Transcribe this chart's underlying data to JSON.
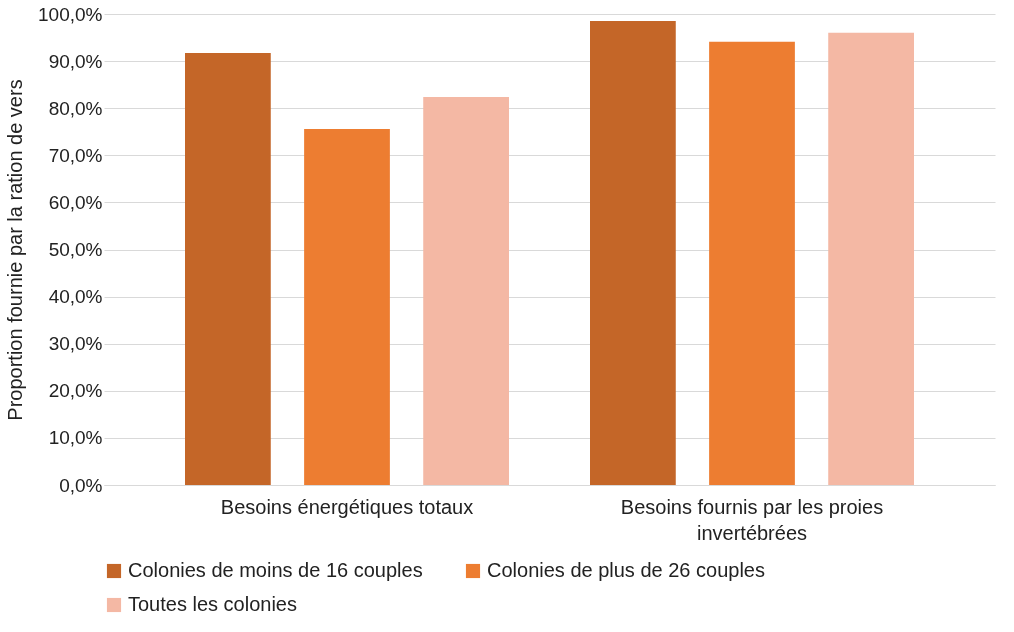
{
  "chart_data": {
    "type": "bar",
    "ylabel": "Proportion fournie par la ration de vers",
    "categories": [
      "Besoins énergétiques totaux",
      "Besoins fournis par les proies invertébrées"
    ],
    "series": [
      {
        "name": "Colonies de moins de 16 couples",
        "color": "#c46628",
        "values": [
          91.7,
          98.5
        ]
      },
      {
        "name": "Colonies de plus de 26 couples",
        "color": "#ed7d31",
        "values": [
          75.6,
          94.1
        ]
      },
      {
        "name": "Toutes les colonies",
        "color": "#f4b8a4",
        "values": [
          82.4,
          96.0
        ]
      }
    ],
    "ylim": [
      0,
      100
    ],
    "yticks": [
      {
        "value": 0,
        "label": "0,0%"
      },
      {
        "value": 10,
        "label": "10,0%"
      },
      {
        "value": 20,
        "label": "20,0%"
      },
      {
        "value": 30,
        "label": "30,0%"
      },
      {
        "value": 40,
        "label": "40,0%"
      },
      {
        "value": 50,
        "label": "50,0%"
      },
      {
        "value": 60,
        "label": "60,0%"
      },
      {
        "value": 70,
        "label": "70,0%"
      },
      {
        "value": 80,
        "label": "80,0%"
      },
      {
        "value": 90,
        "label": "90,0%"
      },
      {
        "value": 100,
        "label": "100,0%"
      }
    ],
    "grid": "y",
    "legend": "bottom"
  }
}
